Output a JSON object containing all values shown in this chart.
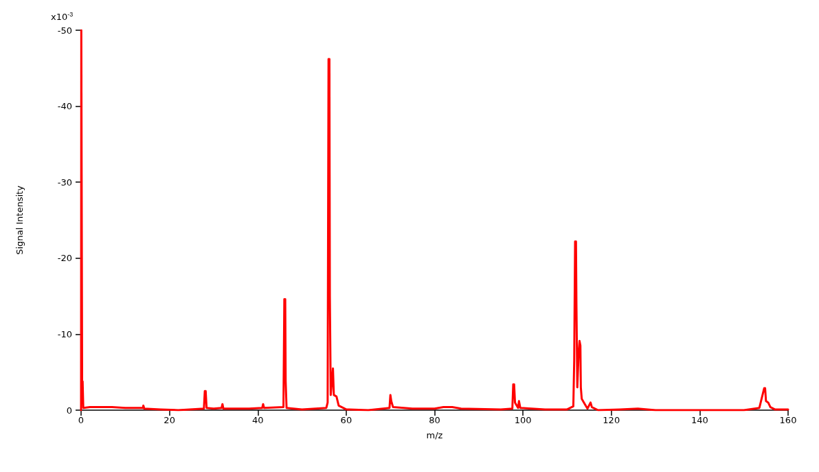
{
  "chart_data": {
    "type": "line",
    "xlabel": "m/z",
    "ylabel": "Signal Intensity",
    "xlim": [
      0,
      160
    ],
    "xticks": [
      0,
      20,
      40,
      60,
      80,
      100,
      120,
      140,
      160
    ],
    "ylim": [
      0,
      -50
    ],
    "yticks": [
      0,
      -10,
      -20,
      -30,
      -40,
      -50
    ],
    "annotations": [
      "x10$^{-3}$"
    ],
    "grid": false,
    "marker": "none",
    "line_style": "solid",
    "series": [
      {
        "color": "#ff0000",
        "x": [
          0,
          0.05,
          0.15,
          0.25,
          0.35,
          0.5,
          2,
          7,
          10,
          14,
          14.1,
          14.3,
          18,
          22,
          27.8,
          28,
          28.2,
          28.4,
          30,
          31.8,
          32,
          32.2,
          38,
          41,
          41.2,
          41.4,
          45.8,
          46,
          46.2,
          46.3,
          46.5,
          50,
          55.5,
          55.8,
          56,
          56.2,
          56.3,
          56.5,
          57,
          57.2,
          57.8,
          58.3,
          60,
          65,
          69.8,
          70,
          70.2,
          70.6,
          75,
          80,
          82,
          84,
          86,
          95,
          97.6,
          97.8,
          98,
          98.2,
          98.9,
          99.1,
          99.4,
          105,
          110,
          111.4,
          111.6,
          111.8,
          112,
          112.1,
          112.3,
          112.6,
          112.8,
          113,
          113.1,
          113.3,
          114,
          114.6,
          115.3,
          115.6,
          117,
          122,
          126,
          130,
          140,
          150,
          153.5,
          154.6,
          154.8,
          155,
          155.5,
          156,
          157,
          160
        ],
        "values": [
          0,
          -50,
          -50,
          -1,
          -3.8,
          -0.3,
          -0.4,
          -0.4,
          -0.3,
          -0.3,
          -0.6,
          -0.2,
          -0.1,
          0,
          -0.2,
          -2.5,
          -2.5,
          -0.3,
          -0.2,
          -0.3,
          -0.8,
          -0.2,
          -0.2,
          -0.3,
          -0.8,
          -0.3,
          -0.4,
          -14.6,
          -14.6,
          -3.8,
          -0.3,
          -0.1,
          -0.3,
          -1,
          -46.2,
          -46.2,
          -15,
          -2,
          -5.5,
          -2,
          -1.8,
          -0.6,
          -0.1,
          0,
          -0.3,
          -2,
          -1.2,
          -0.4,
          -0.2,
          -0.2,
          -0.4,
          -0.4,
          -0.2,
          -0.1,
          -0.2,
          -3.4,
          -3.4,
          -1,
          -0.3,
          -1.2,
          -0.3,
          -0.1,
          -0.1,
          -0.5,
          -6.5,
          -22.2,
          -22.2,
          -14,
          -3,
          -7.5,
          -9.1,
          -8.5,
          -3,
          -1.5,
          -0.8,
          -0.2,
          -1,
          -0.4,
          0,
          -0.1,
          -0.2,
          0,
          0,
          0,
          -0.3,
          -2.9,
          -2.9,
          -1.2,
          -1,
          -0.4,
          -0.1,
          -0.1
        ]
      }
    ]
  }
}
